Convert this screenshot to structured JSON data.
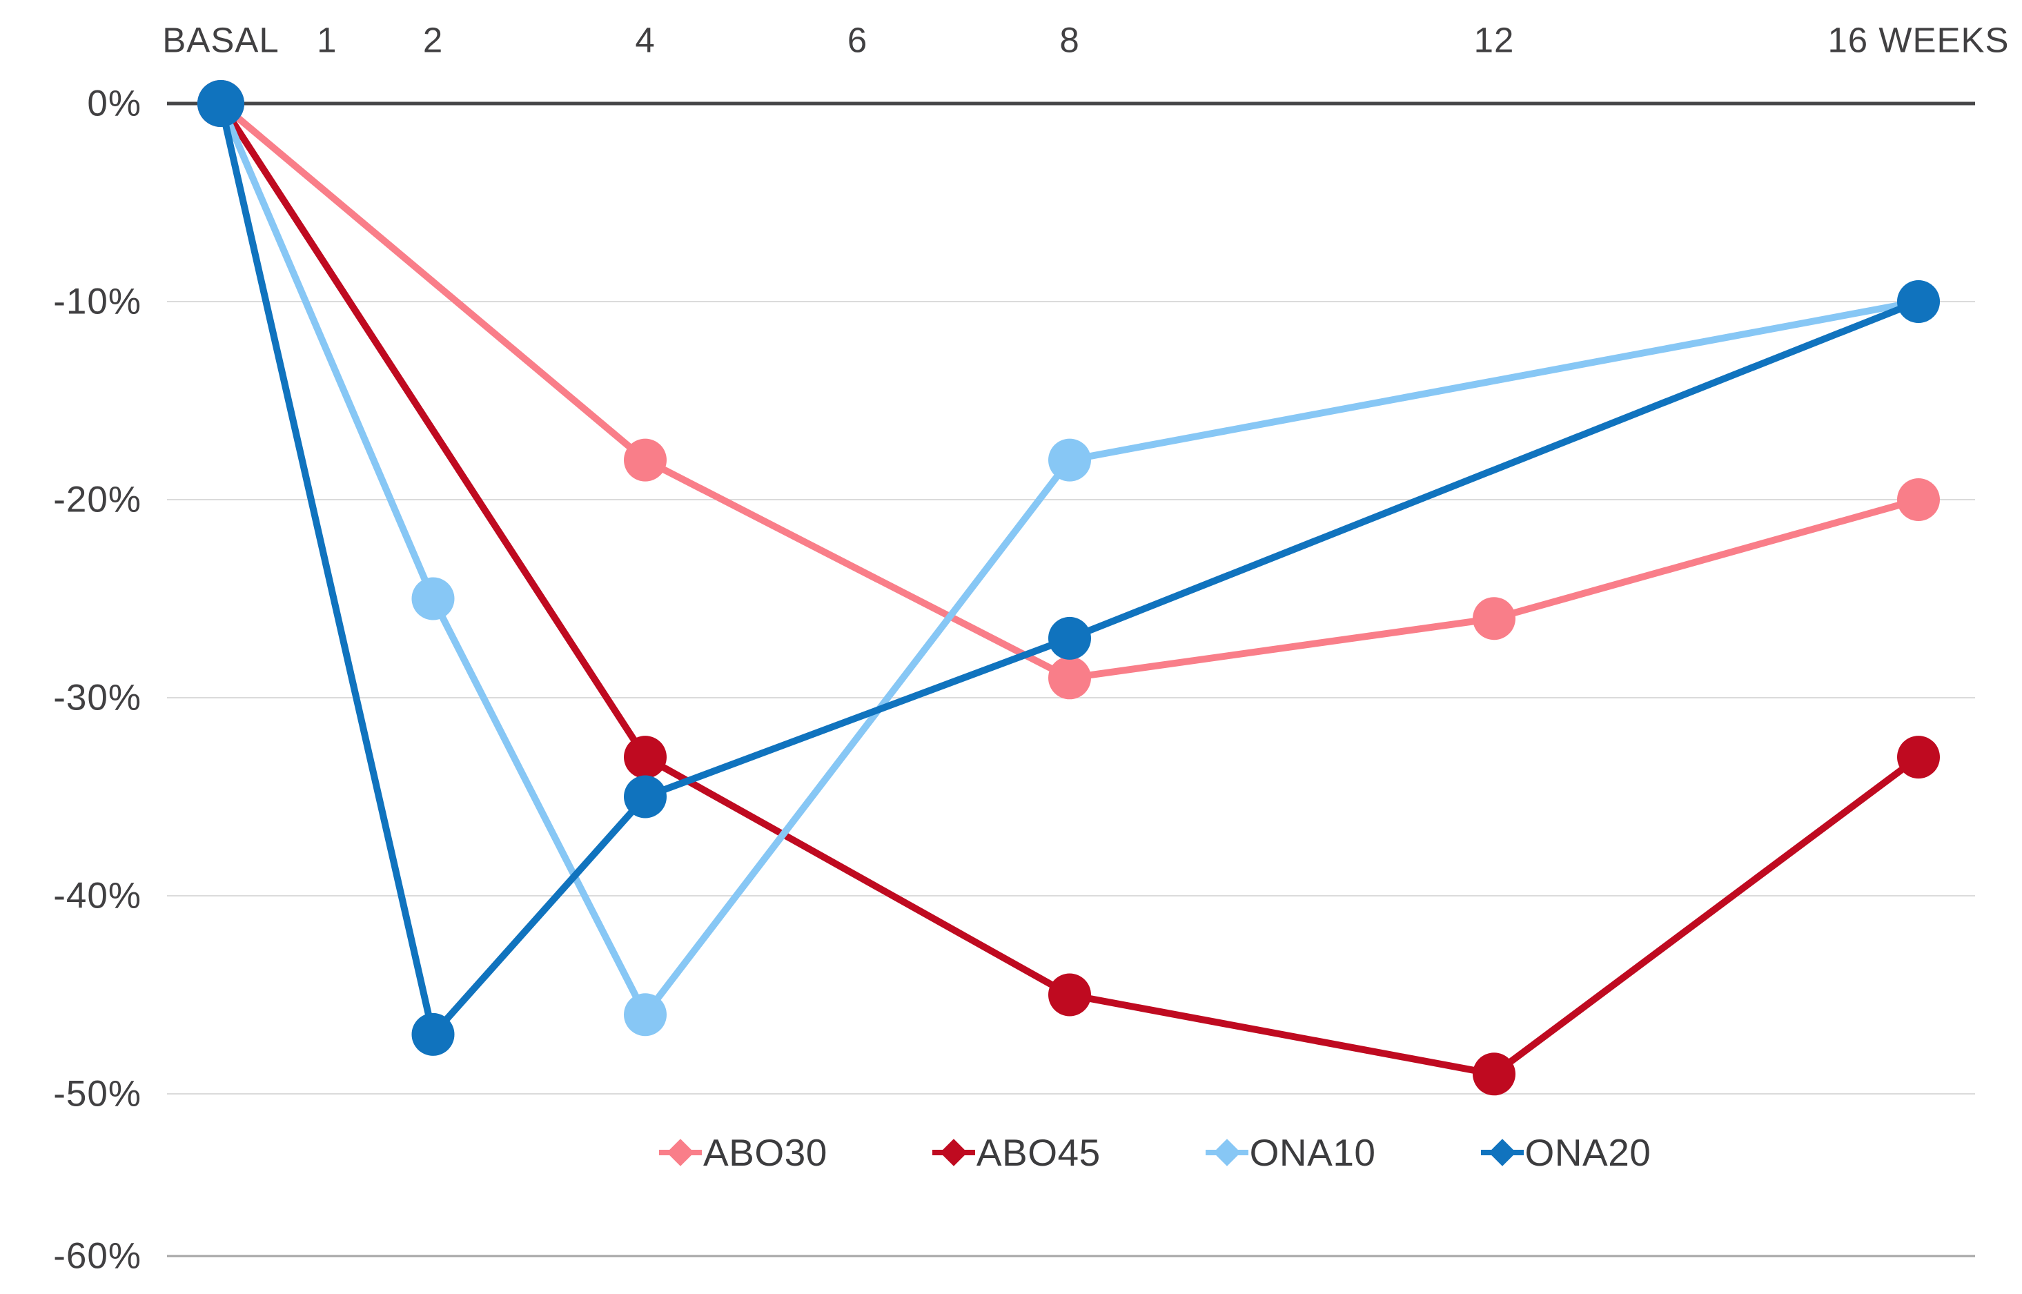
{
  "chart_data": {
    "type": "line",
    "title": "",
    "x_axis": {
      "position": "top",
      "unit": "weeks",
      "range": [
        0,
        16
      ],
      "ticks": [
        {
          "week": 0,
          "label": "BASAL"
        },
        {
          "week": 1,
          "label": "1"
        },
        {
          "week": 2,
          "label": "2"
        },
        {
          "week": 4,
          "label": "4"
        },
        {
          "week": 6,
          "label": "6"
        },
        {
          "week": 8,
          "label": "8"
        },
        {
          "week": 12,
          "label": "12"
        },
        {
          "week": 16,
          "label": "16 WEEKS"
        }
      ]
    },
    "y_axis": {
      "unit": "%",
      "range": [
        0,
        -60
      ],
      "grid": true,
      "ticks": [
        {
          "value": 0,
          "label": "0%"
        },
        {
          "value": -10,
          "label": "-10%"
        },
        {
          "value": -20,
          "label": "-20%"
        },
        {
          "value": -30,
          "label": "-30%"
        },
        {
          "value": -40,
          "label": "-40%"
        },
        {
          "value": -50,
          "label": "-50%"
        },
        {
          "value": -60,
          "label": "-60%"
        }
      ]
    },
    "series": [
      {
        "name": "ABO30",
        "color": "#F97E89",
        "points": [
          {
            "week": 0,
            "value": 0
          },
          {
            "week": 4,
            "value": -18
          },
          {
            "week": 8,
            "value": -29
          },
          {
            "week": 12,
            "value": -26
          },
          {
            "week": 16,
            "value": -20
          }
        ]
      },
      {
        "name": "ABO45",
        "color": "#BF0A20",
        "points": [
          {
            "week": 0,
            "value": 0
          },
          {
            "week": 4,
            "value": -33
          },
          {
            "week": 8,
            "value": -45
          },
          {
            "week": 12,
            "value": -49
          },
          {
            "week": 16,
            "value": -33
          }
        ]
      },
      {
        "name": "ONA10",
        "color": "#87C7F5",
        "points": [
          {
            "week": 0,
            "value": 0
          },
          {
            "week": 2,
            "value": -25
          },
          {
            "week": 4,
            "value": -46
          },
          {
            "week": 8,
            "value": -18
          },
          {
            "week": 16,
            "value": -10
          }
        ]
      },
      {
        "name": "ONA20",
        "color": "#1073BE",
        "points": [
          {
            "week": 0,
            "value": 0
          },
          {
            "week": 2,
            "value": -47
          },
          {
            "week": 4,
            "value": -35
          },
          {
            "week": 8,
            "value": -27
          },
          {
            "week": 16,
            "value": -10
          }
        ]
      }
    ],
    "legend": {
      "position": "bottom",
      "items": [
        "ABO30",
        "ABO45",
        "ONA10",
        "ONA20"
      ]
    }
  },
  "colors": {
    "background": "#FFFFFF",
    "axis_line": "#454547",
    "gridline": "#DBDBDB",
    "bottom_gridline": "#A6A6A6",
    "label_text": "#414042"
  }
}
